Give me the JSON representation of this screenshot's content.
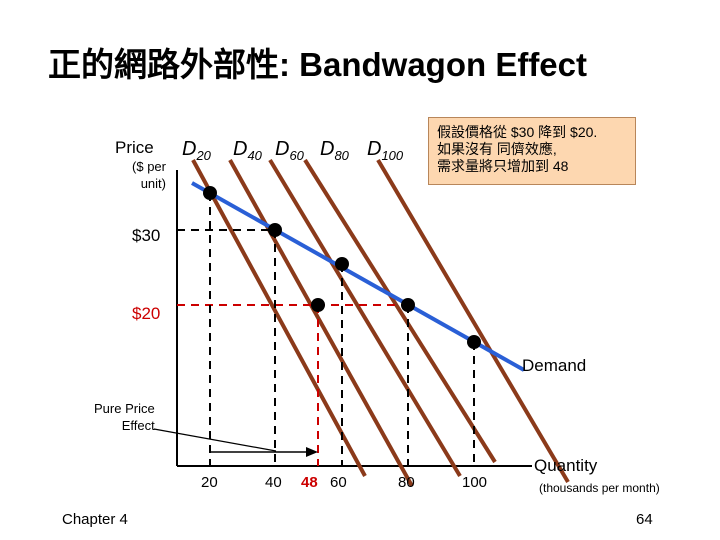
{
  "slide": {
    "title": "正的網路外部性: Bandwagon Effect",
    "chapter": "Chapter 4",
    "page_number": "64"
  },
  "axes": {
    "y_label": "Price",
    "y_unit": "($ per unit)",
    "x_label": "Quantity",
    "x_unit": "(thousands per month)"
  },
  "curve_labels": {
    "d20": {
      "base": "D",
      "sub": "20"
    },
    "d40": {
      "base": "D",
      "sub": "40"
    },
    "d60": {
      "base": "D",
      "sub": "60"
    },
    "d80": {
      "base": "D",
      "sub": "80"
    },
    "d100": {
      "base": "D",
      "sub": "100"
    }
  },
  "demand_label": "Demand",
  "price_labels": {
    "p30": "$30",
    "p20": "$20"
  },
  "quantity_ticks": {
    "q20": "20",
    "q40": "40",
    "q48": "48",
    "q60": "60",
    "q80": "80",
    "q100": "100"
  },
  "note_box": {
    "line1": "假設價格從 $30 降到 $20.",
    "line2": "如果沒有 同儕效應,",
    "line3": "需求量將只增加到 48"
  },
  "pure_price_effect": {
    "line1": "Pure Price",
    "line2": "Effect"
  },
  "colors": {
    "individual_demand": "#8b3a1a",
    "market_demand": "#2a5fd6",
    "highlight": "#cc0000",
    "note_fill": "#fdd7b0"
  }
}
